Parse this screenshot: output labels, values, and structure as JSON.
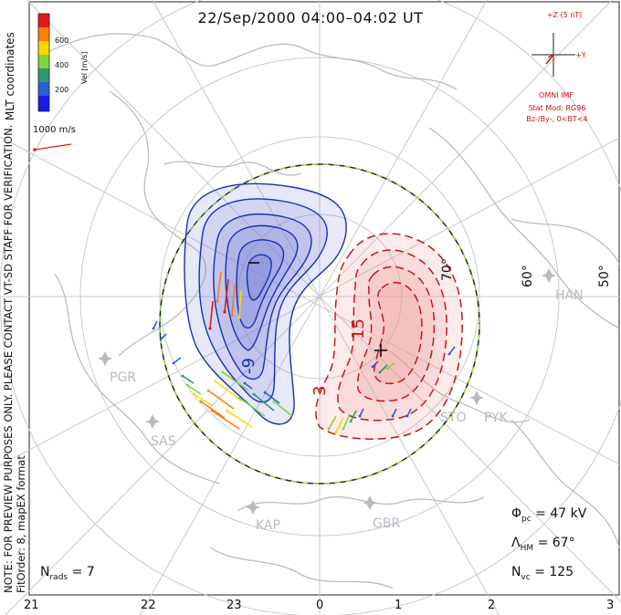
{
  "title": "22/Sep/2000 04:00–04:02 UT",
  "side_notes": {
    "coords": "MLT coordinates",
    "note": "NOTE: FOR PREVIEW PURPOSES ONLY. PLEASE CONTACT VT-SD STAFF FOR VERIFICATION.",
    "fit": "FitOrder: 8, mapEX format"
  },
  "colorbar": {
    "label": "Vel [m/s]",
    "ticks": [
      "600",
      "400",
      "200"
    ],
    "colors": [
      "#e31a1c",
      "#ff7f00",
      "#ffd700",
      "#7fd63a",
      "#2e9a6a",
      "#2b5fd6",
      "#1a1ae6"
    ]
  },
  "reference_vector": "1000 m/s",
  "imf": {
    "z_label": "+Z (5 nT)",
    "y_label": "+Y",
    "model_lines": [
      "OMNI IMF",
      "Stat Mod: RG96",
      "Bz-/By-, 0<BT<4"
    ]
  },
  "latitude_labels": [
    "70°",
    "60°",
    "50°"
  ],
  "stations": [
    "PGR",
    "SAS",
    "KAP",
    "GBR",
    "STO",
    "PYK",
    "HAN"
  ],
  "contour_labels": {
    "negative": "-9",
    "positive_outer": "3",
    "positive_inner": "15"
  },
  "stats": {
    "phi_sym": "Φ",
    "phi_sub": "pc",
    "phi_val": "= 47 kV",
    "lam_sym": "Λ",
    "lam_sub": "HM",
    "lam_val": "= 67°",
    "nvc_sym": "N",
    "nvc_sub": "vc",
    "nvc_val": "= 125",
    "nrad_sym": "N",
    "nrad_sub": "rads",
    "nrad_val": "= 7"
  },
  "mlt_ticks": [
    "21",
    "22",
    "23",
    "0",
    "1",
    "2",
    "3"
  ],
  "style": {
    "blue_fill": "#7b7fd8",
    "red_fill": "#ef9a9a",
    "blue_line": "#1530b8",
    "red_line": "#c8141a"
  }
}
